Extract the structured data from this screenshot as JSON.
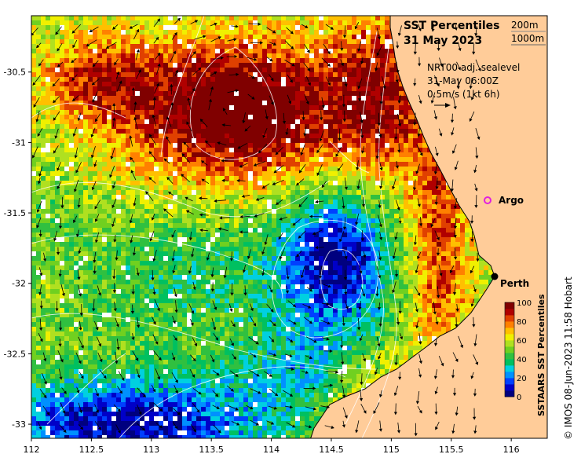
{
  "title_line1": "SST Percentiles",
  "title_line2": "31 May 2023",
  "contour_legend": {
    "line1": "200m",
    "line2": "1000m"
  },
  "current_info": {
    "line1": "NRT00 adj. sealevel",
    "line2": "31-May 06:00Z",
    "line3": "0.5m/s (1kt 6h)"
  },
  "places": [
    {
      "name": "Argo",
      "lon": 115.86,
      "lat": -31.43,
      "marker": "open-circle",
      "color": "#e020e0"
    },
    {
      "name": "Perth",
      "lon": 115.86,
      "lat": -31.95,
      "marker": "filled-circle",
      "color": "#000000"
    }
  ],
  "x_ticks": [
    "112",
    "112.5",
    "113",
    "113.5",
    "114",
    "114.5",
    "115",
    "115.5",
    "116"
  ],
  "y_ticks": [
    "-30.5",
    "-31",
    "-31.5",
    "-32",
    "-32.5",
    "-33"
  ],
  "colorbar": {
    "label": "SSTAARS SST Percentiles",
    "ticks": [
      "100",
      "80",
      "60",
      "40",
      "20",
      "0"
    ],
    "colors": [
      "#00007f",
      "#0000c8",
      "#0040ff",
      "#0090ff",
      "#00d0e0",
      "#00c060",
      "#30c040",
      "#70d020",
      "#b0e020",
      "#f0f000",
      "#ffc000",
      "#ff8000",
      "#e04000",
      "#b00000",
      "#800000"
    ]
  },
  "credit": "© IMOS 08-Jun-2023 11:58 Hobart",
  "land_color": "#ffcc99",
  "chart_data": {
    "type": "heatmap",
    "xlim": [
      112,
      116.3
    ],
    "ylim": [
      -33.1,
      -30.1
    ],
    "x_ticks": [
      112,
      112.5,
      113,
      113.5,
      114,
      114.5,
      115,
      115.5,
      116
    ],
    "y_ticks": [
      -30.5,
      -31,
      -31.5,
      -32,
      -32.5,
      -33
    ],
    "value_range": [
      0,
      100
    ]
  }
}
